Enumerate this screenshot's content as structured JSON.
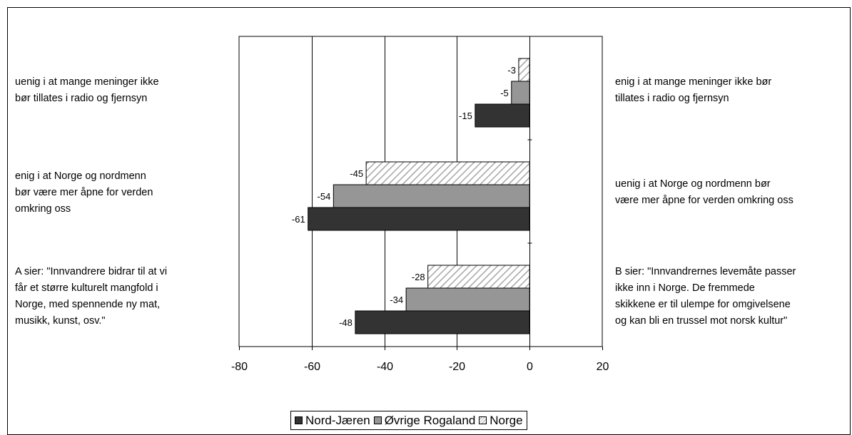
{
  "chart_data": {
    "type": "bar",
    "orientation": "horizontal",
    "groups": [
      {
        "left_label": "uenig i at mange meninger ikke\nbør tillates i radio og fjernsyn",
        "right_label": "enig i at mange meninger ikke bør\ntillates i radio og fjernsyn"
      },
      {
        "left_label": "enig i at Norge og nordmenn\nbør være mer åpne for verden\nomkring oss",
        "right_label": "uenig i at Norge og nordmenn bør\nvære mer åpne for verden omkring oss"
      },
      {
        "left_label": "A sier: \"Innvandrere bidrar til at vi\nfår et større kulturelt mangfold i\nNorge, med spennende ny mat,\nmusikk, kunst, osv.\"",
        "right_label": "B sier: \"Innvandrernes levemåte passer\nikke inn i Norge. De fremmede\nskikkene er til ulempe for omgivelsene\nog kan bli en trussel mot norsk kultur\""
      }
    ],
    "series": [
      {
        "name": "Nord-Jæren",
        "values": [
          -15,
          -61,
          -48
        ],
        "fill": "#333333"
      },
      {
        "name": "Øvrige Rogaland",
        "values": [
          -5,
          -54,
          -34
        ],
        "fill": "#969696"
      },
      {
        "name": "Norge",
        "values": [
          -3,
          -45,
          -28
        ],
        "fill": "hatched"
      }
    ],
    "xlim": [
      -80,
      20
    ],
    "xticks": [
      "-80",
      "-60",
      "-40",
      "-20",
      "0",
      "20"
    ],
    "grid": true,
    "legend_position": "bottom-center"
  },
  "legend": {
    "items": [
      {
        "label": "Nord-Jæren",
        "color": "#333333",
        "pattern": "solid"
      },
      {
        "label": "Øvrige Rogaland",
        "color": "#969696",
        "pattern": "solid"
      },
      {
        "label": "Norge",
        "color": "#ffffff",
        "pattern": "hatched"
      }
    ]
  }
}
